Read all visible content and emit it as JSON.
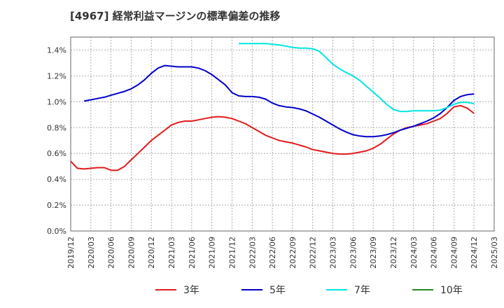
{
  "chart_data": {
    "type": "line",
    "title": "[4967]  経常利益マージンの標準偏差の推移",
    "xlabel": "",
    "ylabel": "",
    "ylim": [
      0,
      0.015
    ],
    "y_ticks": [
      "0.0%",
      "0.2%",
      "0.4%",
      "0.6%",
      "0.8%",
      "1.0%",
      "1.2%",
      "1.4%"
    ],
    "x_ticks": [
      "2019/12",
      "2020/03",
      "2020/06",
      "2020/09",
      "2020/12",
      "2021/03",
      "2021/06",
      "2021/09",
      "2021/12",
      "2022/03",
      "2022/06",
      "2022/09",
      "2022/12",
      "2023/03",
      "2023/06",
      "2023/09",
      "2023/12",
      "2024/03",
      "2024/06",
      "2024/09",
      "2024/12",
      "2025/03"
    ],
    "grid": true,
    "legend_position": "bottom",
    "series": [
      {
        "name": "3年",
        "color": "#e31a1c",
        "points": [
          [
            "2019/12",
            0.54
          ],
          [
            "2020/01",
            0.485
          ],
          [
            "2020/02",
            0.48
          ],
          [
            "2020/03",
            0.485
          ],
          [
            "2020/04",
            0.49
          ],
          [
            "2020/05",
            0.49
          ],
          [
            "2020/06",
            0.47
          ],
          [
            "2020/07",
            0.47
          ],
          [
            "2020/08",
            0.5
          ],
          [
            "2020/09",
            0.55
          ],
          [
            "2020/10",
            0.6
          ],
          [
            "2020/11",
            0.65
          ],
          [
            "2020/12",
            0.7
          ],
          [
            "2021/01",
            0.74
          ],
          [
            "2021/02",
            0.78
          ],
          [
            "2021/03",
            0.82
          ],
          [
            "2021/04",
            0.84
          ],
          [
            "2021/05",
            0.85
          ],
          [
            "2021/06",
            0.85
          ],
          [
            "2021/07",
            0.86
          ],
          [
            "2021/08",
            0.87
          ],
          [
            "2021/09",
            0.88
          ],
          [
            "2021/10",
            0.885
          ],
          [
            "2021/11",
            0.88
          ],
          [
            "2021/12",
            0.87
          ],
          [
            "2022/01",
            0.85
          ],
          [
            "2022/02",
            0.83
          ],
          [
            "2022/03",
            0.8
          ],
          [
            "2022/04",
            0.77
          ],
          [
            "2022/05",
            0.74
          ],
          [
            "2022/06",
            0.72
          ],
          [
            "2022/07",
            0.7
          ],
          [
            "2022/08",
            0.69
          ],
          [
            "2022/09",
            0.68
          ],
          [
            "2022/10",
            0.665
          ],
          [
            "2022/11",
            0.65
          ],
          [
            "2022/12",
            0.63
          ],
          [
            "2023/01",
            0.62
          ],
          [
            "2023/02",
            0.61
          ],
          [
            "2023/03",
            0.6
          ],
          [
            "2023/04",
            0.595
          ],
          [
            "2023/05",
            0.595
          ],
          [
            "2023/06",
            0.6
          ],
          [
            "2023/07",
            0.61
          ],
          [
            "2023/08",
            0.62
          ],
          [
            "2023/09",
            0.64
          ],
          [
            "2023/10",
            0.67
          ],
          [
            "2023/11",
            0.71
          ],
          [
            "2023/12",
            0.75
          ],
          [
            "2024/01",
            0.78
          ],
          [
            "2024/02",
            0.8
          ],
          [
            "2024/03",
            0.81
          ],
          [
            "2024/04",
            0.82
          ],
          [
            "2024/05",
            0.83
          ],
          [
            "2024/06",
            0.85
          ],
          [
            "2024/07",
            0.87
          ],
          [
            "2024/08",
            0.91
          ],
          [
            "2024/09",
            0.96
          ],
          [
            "2024/10",
            0.97
          ],
          [
            "2024/11",
            0.95
          ],
          [
            "2024/12",
            0.91
          ]
        ]
      },
      {
        "name": "5年",
        "color": "#0000cc",
        "points": [
          [
            "2020/02",
            1.005
          ],
          [
            "2020/03",
            1.015
          ],
          [
            "2020/04",
            1.025
          ],
          [
            "2020/05",
            1.035
          ],
          [
            "2020/06",
            1.05
          ],
          [
            "2020/07",
            1.065
          ],
          [
            "2020/08",
            1.08
          ],
          [
            "2020/09",
            1.1
          ],
          [
            "2020/10",
            1.13
          ],
          [
            "2020/11",
            1.17
          ],
          [
            "2020/12",
            1.22
          ],
          [
            "2021/01",
            1.26
          ],
          [
            "2021/02",
            1.28
          ],
          [
            "2021/03",
            1.275
          ],
          [
            "2021/04",
            1.27
          ],
          [
            "2021/05",
            1.27
          ],
          [
            "2021/06",
            1.27
          ],
          [
            "2021/07",
            1.26
          ],
          [
            "2021/08",
            1.24
          ],
          [
            "2021/09",
            1.21
          ],
          [
            "2021/10",
            1.17
          ],
          [
            "2021/11",
            1.13
          ],
          [
            "2021/12",
            1.07
          ],
          [
            "2022/01",
            1.045
          ],
          [
            "2022/02",
            1.04
          ],
          [
            "2022/03",
            1.04
          ],
          [
            "2022/04",
            1.035
          ],
          [
            "2022/05",
            1.02
          ],
          [
            "2022/06",
            0.99
          ],
          [
            "2022/07",
            0.97
          ],
          [
            "2022/08",
            0.96
          ],
          [
            "2022/09",
            0.955
          ],
          [
            "2022/10",
            0.945
          ],
          [
            "2022/11",
            0.93
          ],
          [
            "2022/12",
            0.905
          ],
          [
            "2023/01",
            0.88
          ],
          [
            "2023/02",
            0.85
          ],
          [
            "2023/03",
            0.82
          ],
          [
            "2023/04",
            0.79
          ],
          [
            "2023/05",
            0.765
          ],
          [
            "2023/06",
            0.745
          ],
          [
            "2023/07",
            0.735
          ],
          [
            "2023/08",
            0.73
          ],
          [
            "2023/09",
            0.73
          ],
          [
            "2023/10",
            0.735
          ],
          [
            "2023/11",
            0.745
          ],
          [
            "2023/12",
            0.76
          ],
          [
            "2024/01",
            0.78
          ],
          [
            "2024/02",
            0.795
          ],
          [
            "2024/03",
            0.81
          ],
          [
            "2024/04",
            0.83
          ],
          [
            "2024/05",
            0.85
          ],
          [
            "2024/06",
            0.875
          ],
          [
            "2024/07",
            0.91
          ],
          [
            "2024/08",
            0.955
          ],
          [
            "2024/09",
            1.01
          ],
          [
            "2024/10",
            1.04
          ],
          [
            "2024/11",
            1.055
          ],
          [
            "2024/12",
            1.06
          ]
        ]
      },
      {
        "name": "7年",
        "color": "#00e5e5",
        "points": [
          [
            "2022/01",
            1.45
          ],
          [
            "2022/02",
            1.45
          ],
          [
            "2022/03",
            1.45
          ],
          [
            "2022/04",
            1.45
          ],
          [
            "2022/05",
            1.45
          ],
          [
            "2022/06",
            1.445
          ],
          [
            "2022/07",
            1.44
          ],
          [
            "2022/08",
            1.43
          ],
          [
            "2022/09",
            1.42
          ],
          [
            "2022/10",
            1.415
          ],
          [
            "2022/11",
            1.415
          ],
          [
            "2022/12",
            1.41
          ],
          [
            "2023/01",
            1.39
          ],
          [
            "2023/02",
            1.34
          ],
          [
            "2023/03",
            1.29
          ],
          [
            "2023/04",
            1.255
          ],
          [
            "2023/05",
            1.225
          ],
          [
            "2023/06",
            1.2
          ],
          [
            "2023/07",
            1.165
          ],
          [
            "2023/08",
            1.12
          ],
          [
            "2023/09",
            1.075
          ],
          [
            "2023/10",
            1.03
          ],
          [
            "2023/11",
            0.98
          ],
          [
            "2023/12",
            0.94
          ],
          [
            "2024/01",
            0.925
          ],
          [
            "2024/02",
            0.925
          ],
          [
            "2024/03",
            0.93
          ],
          [
            "2024/04",
            0.93
          ],
          [
            "2024/05",
            0.93
          ],
          [
            "2024/06",
            0.93
          ],
          [
            "2024/07",
            0.935
          ],
          [
            "2024/08",
            0.955
          ],
          [
            "2024/09",
            0.98
          ],
          [
            "2024/10",
            0.995
          ],
          [
            "2024/11",
            0.995
          ],
          [
            "2024/12",
            0.985
          ]
        ]
      },
      {
        "name": "10年",
        "color": "#228b22",
        "points": []
      }
    ]
  }
}
